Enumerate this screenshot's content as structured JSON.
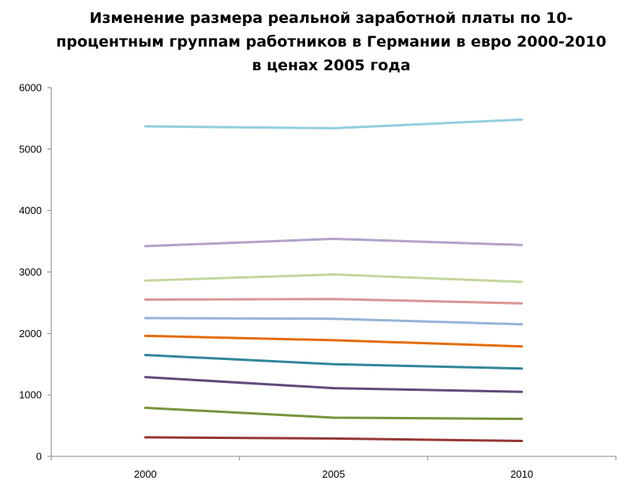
{
  "chart_data": {
    "type": "line",
    "title": "Изменение размера реальной заработной платы по 10-процентным группам работников в Германии в евро 2000-2010 в ценах 2005 года",
    "xlabel": "",
    "ylabel": "",
    "categories": [
      "2000",
      "2005",
      "2010"
    ],
    "ylim": [
      0,
      6000
    ],
    "yticks": [
      0,
      1000,
      2000,
      3000,
      4000,
      5000,
      6000
    ],
    "grid": false,
    "legend": "none",
    "series": [
      {
        "color": "#93CDDD",
        "values": [
          5370,
          5340,
          5480
        ]
      },
      {
        "color": "#B3A2C7",
        "values": [
          3420,
          3540,
          3440
        ]
      },
      {
        "color": "#C3D69B",
        "values": [
          2860,
          2960,
          2840
        ]
      },
      {
        "color": "#D99694",
        "values": [
          2550,
          2560,
          2490
        ]
      },
      {
        "color": "#95B3D7",
        "values": [
          2250,
          2240,
          2150
        ]
      },
      {
        "color": "#E46C0A",
        "values": [
          1960,
          1890,
          1790
        ]
      },
      {
        "color": "#31859C",
        "values": [
          1650,
          1500,
          1430
        ]
      },
      {
        "color": "#604A7B",
        "values": [
          1290,
          1110,
          1050
        ]
      },
      {
        "color": "#77933C",
        "values": [
          790,
          630,
          610
        ]
      },
      {
        "color": "#953735",
        "values": [
          310,
          290,
          250
        ]
      }
    ]
  }
}
